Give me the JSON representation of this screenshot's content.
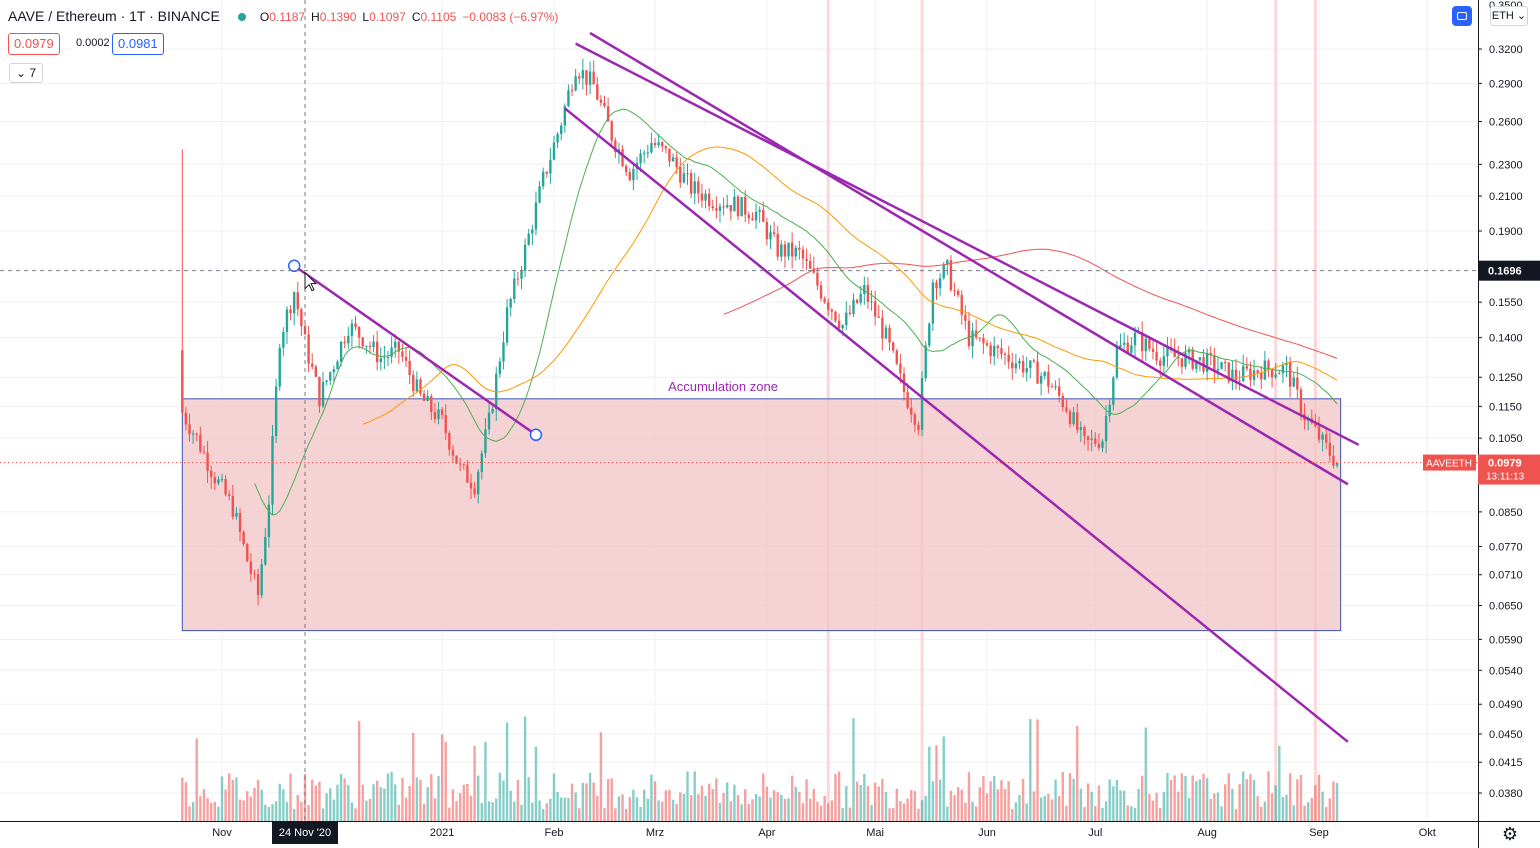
{
  "header": {
    "symbol": "AAVE / Ethereum · 1T · BINANCE",
    "o_label": "O",
    "o": "0.1187",
    "h_label": "H",
    "h": "0.1390",
    "l_label": "L",
    "l": "0.1097",
    "c_label": "C",
    "c": "0.1105",
    "change": "−0.0083 (−6.97%)",
    "sell_price": "0.0979",
    "spread": "0.0002",
    "buy_price": "0.0981",
    "indicators_count": "7",
    "currency": "ETH"
  },
  "colors": {
    "up": "#26a69a",
    "down": "#ef5350",
    "trend": "#9c27b0",
    "zone_fill": "#f2c4c6",
    "zone_border": "#3f51b5",
    "ma_green": "#4caf50",
    "ma_orange": "#ff9800",
    "ma_red": "#ef5350"
  },
  "chart_data": {
    "type": "candlestick",
    "symbol": "AAVEETH",
    "x_ticks": [
      "Nov",
      "24 Nov '20",
      "2021",
      "Feb",
      "Mrz",
      "Apr",
      "Mai",
      "Jun",
      "Jul",
      "Aug",
      "Sep",
      "Okt"
    ],
    "y_ticks": [
      "0.3200",
      "0.2900",
      "0.2600",
      "0.2300",
      "0.2100",
      "0.1900",
      "0.1550",
      "0.1400",
      "0.1250",
      "0.1150",
      "0.1050",
      "0.0850",
      "0.0770",
      "0.0710",
      "0.0650",
      "0.0590",
      "0.0540",
      "0.0490",
      "0.0450",
      "0.0415",
      "0.0380"
    ],
    "y_top_partial": "0.3500",
    "y_scale": "log",
    "crosshair_price_label": "0.1696",
    "last_price_label": "0.0979",
    "countdown_label": "13:11:13",
    "annotation": "Accumulation zone",
    "zone": {
      "upper": 0.1175,
      "lower": 0.0605,
      "from": "2020-10-21",
      "to": "2021-09-07"
    },
    "trendlines": [
      {
        "from": [
          "2020-11-21",
          0.172
        ],
        "to": [
          "2021-01-27",
          0.106
        ]
      },
      {
        "from": [
          "2021-02-07",
          0.325
        ],
        "to": [
          "2021-09-12",
          0.103
        ]
      },
      {
        "from": [
          "2021-02-11",
          0.335
        ],
        "to": [
          "2021-09-09",
          0.092
        ]
      },
      {
        "from": [
          "2021-02-04",
          0.27
        ],
        "to": [
          "2021-09-09",
          0.044
        ]
      }
    ],
    "close_series": [
      [
        "2020-10-21",
        0.113
      ],
      [
        "2020-10-25",
        0.105
      ],
      [
        "2020-10-30",
        0.094
      ],
      [
        "2020-11-04",
        0.086
      ],
      [
        "2020-11-08",
        0.074
      ],
      [
        "2020-11-11",
        0.067
      ],
      [
        "2020-11-14",
        0.088
      ],
      [
        "2020-11-17",
        0.14
      ],
      [
        "2020-11-21",
        0.16
      ],
      [
        "2020-11-24",
        0.138
      ],
      [
        "2020-11-28",
        0.118
      ],
      [
        "2020-12-02",
        0.13
      ],
      [
        "2020-12-06",
        0.145
      ],
      [
        "2020-12-10",
        0.14
      ],
      [
        "2020-12-15",
        0.132
      ],
      [
        "2020-12-20",
        0.135
      ],
      [
        "2020-12-26",
        0.118
      ],
      [
        "2021-01-01",
        0.11
      ],
      [
        "2021-01-06",
        0.096
      ],
      [
        "2021-01-10",
        0.092
      ],
      [
        "2021-01-14",
        0.11
      ],
      [
        "2021-01-19",
        0.15
      ],
      [
        "2021-01-24",
        0.18
      ],
      [
        "2021-01-29",
        0.22
      ],
      [
        "2021-02-03",
        0.26
      ],
      [
        "2021-02-07",
        0.305
      ],
      [
        "2021-02-12",
        0.288
      ],
      [
        "2021-02-17",
        0.25
      ],
      [
        "2021-02-22",
        0.225
      ],
      [
        "2021-02-28",
        0.245
      ],
      [
        "2021-03-05",
        0.235
      ],
      [
        "2021-03-11",
        0.215
      ],
      [
        "2021-03-17",
        0.208
      ],
      [
        "2021-03-23",
        0.205
      ],
      [
        "2021-03-29",
        0.2
      ],
      [
        "2021-04-04",
        0.18
      ],
      [
        "2021-04-10",
        0.178
      ],
      [
        "2021-04-16",
        0.16
      ],
      [
        "2021-04-22",
        0.145
      ],
      [
        "2021-04-28",
        0.16
      ],
      [
        "2021-05-04",
        0.14
      ],
      [
        "2021-05-09",
        0.12
      ],
      [
        "2021-05-13",
        0.11
      ],
      [
        "2021-05-17",
        0.165
      ],
      [
        "2021-05-21",
        0.17
      ],
      [
        "2021-05-27",
        0.14
      ],
      [
        "2021-06-03",
        0.135
      ],
      [
        "2021-06-10",
        0.13
      ],
      [
        "2021-06-17",
        0.125
      ],
      [
        "2021-06-23",
        0.115
      ],
      [
        "2021-06-28",
        0.103
      ],
      [
        "2021-07-03",
        0.105
      ],
      [
        "2021-07-07",
        0.135
      ],
      [
        "2021-07-12",
        0.14
      ],
      [
        "2021-07-19",
        0.133
      ],
      [
        "2021-07-26",
        0.132
      ],
      [
        "2021-08-02",
        0.13
      ],
      [
        "2021-08-09",
        0.125
      ],
      [
        "2021-08-16",
        0.128
      ],
      [
        "2021-08-23",
        0.128
      ],
      [
        "2021-08-28",
        0.112
      ],
      [
        "2021-09-03",
        0.102
      ],
      [
        "2021-09-06",
        0.0979
      ]
    ]
  }
}
